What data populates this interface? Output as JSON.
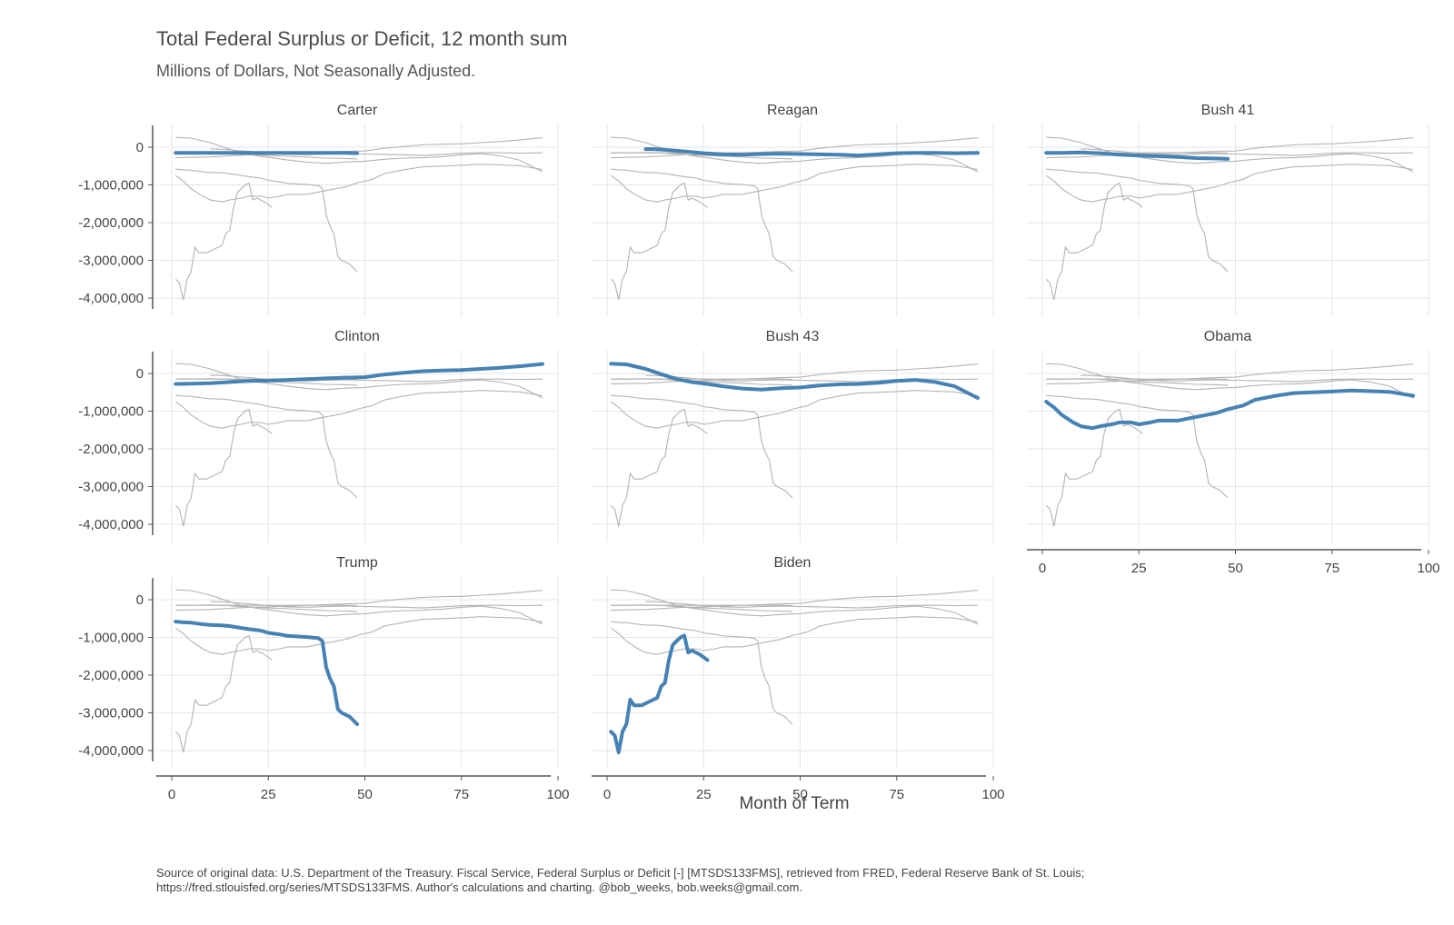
{
  "chart_data": {
    "type": "line",
    "title": "Total Federal Surplus or Deficit, 12 month sum",
    "subtitle": "Millions of Dollars, Not Seasonally Adjusted.",
    "xlabel": "Month of Term",
    "ylabel": "",
    "xlim": [
      0,
      100
    ],
    "ylim": [
      -4200000,
      500000
    ],
    "x_ticks": [
      0,
      25,
      50,
      75,
      100
    ],
    "x_tick_labels": [
      "0",
      "25",
      "50",
      "75",
      "100"
    ],
    "y_ticks": [
      0,
      -1000000,
      -2000000,
      -3000000,
      -4000000
    ],
    "y_tick_labels": [
      "0",
      "-1,000,000",
      "-2,000,000",
      "-3,000,000",
      "-4,000,000"
    ],
    "grid": true,
    "highlight_color": "#4682b4",
    "background_line_color": "#b3b3b3",
    "panels": [
      "Carter",
      "Reagan",
      "Bush 41",
      "Clinton",
      "Bush 43",
      "Obama",
      "Trump",
      "Biden"
    ],
    "series": [
      {
        "name": "Carter",
        "points": [
          [
            1,
            -150000
          ],
          [
            5,
            -150000
          ],
          [
            10,
            -150000
          ],
          [
            15,
            -150000
          ],
          [
            20,
            -150000
          ],
          [
            25,
            -150000
          ],
          [
            30,
            -150000
          ],
          [
            35,
            -150000
          ],
          [
            40,
            -150000
          ],
          [
            45,
            -150000
          ],
          [
            48,
            -160000
          ]
        ]
      },
      {
        "name": "Reagan",
        "points": [
          [
            10,
            -50000
          ],
          [
            12,
            -50000
          ],
          [
            15,
            -70000
          ],
          [
            20,
            -110000
          ],
          [
            25,
            -160000
          ],
          [
            30,
            -190000
          ],
          [
            35,
            -200000
          ],
          [
            40,
            -180000
          ],
          [
            45,
            -170000
          ],
          [
            50,
            -180000
          ],
          [
            55,
            -190000
          ],
          [
            60,
            -200000
          ],
          [
            65,
            -220000
          ],
          [
            70,
            -190000
          ],
          [
            75,
            -160000
          ],
          [
            80,
            -150000
          ],
          [
            85,
            -150000
          ],
          [
            90,
            -160000
          ],
          [
            96,
            -150000
          ]
        ]
      },
      {
        "name": "Bush 41",
        "points": [
          [
            1,
            -150000
          ],
          [
            5,
            -150000
          ],
          [
            10,
            -140000
          ],
          [
            15,
            -160000
          ],
          [
            20,
            -200000
          ],
          [
            25,
            -220000
          ],
          [
            30,
            -240000
          ],
          [
            35,
            -260000
          ],
          [
            40,
            -290000
          ],
          [
            45,
            -300000
          ],
          [
            48,
            -310000
          ]
        ]
      },
      {
        "name": "Clinton",
        "points": [
          [
            1,
            -280000
          ],
          [
            5,
            -270000
          ],
          [
            10,
            -260000
          ],
          [
            15,
            -230000
          ],
          [
            20,
            -200000
          ],
          [
            25,
            -190000
          ],
          [
            30,
            -170000
          ],
          [
            35,
            -150000
          ],
          [
            40,
            -130000
          ],
          [
            45,
            -110000
          ],
          [
            50,
            -100000
          ],
          [
            55,
            -30000
          ],
          [
            60,
            20000
          ],
          [
            65,
            60000
          ],
          [
            70,
            80000
          ],
          [
            75,
            90000
          ],
          [
            80,
            120000
          ],
          [
            85,
            150000
          ],
          [
            90,
            190000
          ],
          [
            96,
            250000
          ]
        ]
      },
      {
        "name": "Bush 43",
        "points": [
          [
            1,
            260000
          ],
          [
            5,
            240000
          ],
          [
            10,
            120000
          ],
          [
            14,
            -20000
          ],
          [
            18,
            -150000
          ],
          [
            22,
            -230000
          ],
          [
            26,
            -280000
          ],
          [
            30,
            -340000
          ],
          [
            35,
            -400000
          ],
          [
            40,
            -430000
          ],
          [
            45,
            -390000
          ],
          [
            50,
            -370000
          ],
          [
            55,
            -320000
          ],
          [
            60,
            -290000
          ],
          [
            65,
            -280000
          ],
          [
            70,
            -250000
          ],
          [
            75,
            -200000
          ],
          [
            80,
            -170000
          ],
          [
            85,
            -230000
          ],
          [
            90,
            -340000
          ],
          [
            96,
            -650000
          ]
        ]
      },
      {
        "name": "Obama",
        "points": [
          [
            1,
            -750000
          ],
          [
            3,
            -900000
          ],
          [
            5,
            -1100000
          ],
          [
            8,
            -1300000
          ],
          [
            10,
            -1400000
          ],
          [
            13,
            -1450000
          ],
          [
            15,
            -1400000
          ],
          [
            18,
            -1350000
          ],
          [
            20,
            -1300000
          ],
          [
            23,
            -1300000
          ],
          [
            25,
            -1350000
          ],
          [
            28,
            -1300000
          ],
          [
            30,
            -1250000
          ],
          [
            35,
            -1250000
          ],
          [
            40,
            -1150000
          ],
          [
            45,
            -1050000
          ],
          [
            48,
            -950000
          ],
          [
            52,
            -850000
          ],
          [
            55,
            -700000
          ],
          [
            60,
            -600000
          ],
          [
            65,
            -520000
          ],
          [
            70,
            -500000
          ],
          [
            75,
            -480000
          ],
          [
            80,
            -450000
          ],
          [
            85,
            -470000
          ],
          [
            90,
            -490000
          ],
          [
            96,
            -590000
          ]
        ]
      },
      {
        "name": "Trump",
        "points": [
          [
            1,
            -580000
          ],
          [
            3,
            -600000
          ],
          [
            5,
            -610000
          ],
          [
            8,
            -650000
          ],
          [
            10,
            -670000
          ],
          [
            13,
            -680000
          ],
          [
            15,
            -700000
          ],
          [
            18,
            -750000
          ],
          [
            20,
            -780000
          ],
          [
            23,
            -820000
          ],
          [
            25,
            -880000
          ],
          [
            28,
            -920000
          ],
          [
            30,
            -960000
          ],
          [
            35,
            -990000
          ],
          [
            38,
            -1020000
          ],
          [
            39,
            -1100000
          ],
          [
            40,
            -1800000
          ],
          [
            41,
            -2100000
          ],
          [
            42,
            -2300000
          ],
          [
            43,
            -2900000
          ],
          [
            44,
            -3000000
          ],
          [
            46,
            -3100000
          ],
          [
            47,
            -3200000
          ],
          [
            48,
            -3300000
          ]
        ]
      },
      {
        "name": "Biden",
        "points": [
          [
            1,
            -3500000
          ],
          [
            2,
            -3600000
          ],
          [
            3,
            -4050000
          ],
          [
            4,
            -3500000
          ],
          [
            5,
            -3300000
          ],
          [
            6,
            -2650000
          ],
          [
            7,
            -2800000
          ],
          [
            9,
            -2800000
          ],
          [
            11,
            -2700000
          ],
          [
            13,
            -2600000
          ],
          [
            14,
            -2300000
          ],
          [
            15,
            -2200000
          ],
          [
            16,
            -1600000
          ],
          [
            17,
            -1200000
          ],
          [
            18,
            -1100000
          ],
          [
            19,
            -1000000
          ],
          [
            20,
            -950000
          ],
          [
            21,
            -1400000
          ],
          [
            22,
            -1350000
          ],
          [
            24,
            -1450000
          ],
          [
            26,
            -1600000
          ]
        ]
      }
    ]
  },
  "caption_lines": [
    "Source of original data: U.S. Department of the Treasury. Fiscal Service, Federal Surplus or Deficit [-] [MTSDS133FMS], retrieved from FRED, Federal Reserve Bank of St. Louis;",
    "https://fred.stlouisfed.org/series/MTSDS133FMS. Author's calculations and charting. @bob_weeks, bob.weeks@gmail.com."
  ]
}
